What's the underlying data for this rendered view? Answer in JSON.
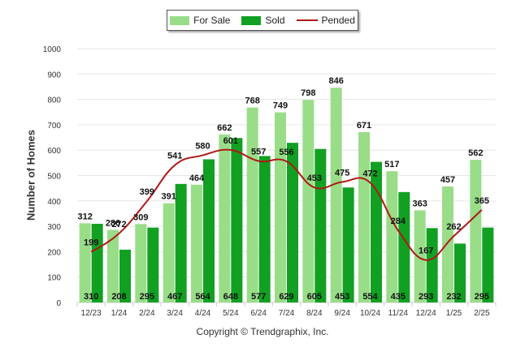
{
  "chart_data": {
    "type": "bar",
    "categories": [
      "12/23",
      "1/24",
      "2/24",
      "3/24",
      "4/24",
      "5/24",
      "6/24",
      "7/24",
      "8/24",
      "9/24",
      "10/24",
      "11/24",
      "12/24",
      "1/25",
      "2/25"
    ],
    "series": [
      {
        "name": "For Sale",
        "kind": "bar",
        "color": "#99dd88",
        "values": [
          312,
          286,
          309,
          391,
          464,
          662,
          768,
          749,
          798,
          846,
          671,
          517,
          363,
          457,
          562
        ]
      },
      {
        "name": "Sold",
        "kind": "bar",
        "color": "#11a022",
        "values": [
          310,
          208,
          295,
          467,
          564,
          648,
          577,
          629,
          605,
          453,
          554,
          435,
          293,
          232,
          295
        ]
      },
      {
        "name": "Pended",
        "kind": "line",
        "color": "#b01818",
        "values": [
          199,
          272,
          399,
          541,
          580,
          601,
          557,
          556,
          453,
          475,
          472,
          284,
          167,
          262,
          365
        ]
      }
    ],
    "ylabel": "Number of Homes",
    "xlabel": "",
    "ylim": [
      0,
      1000
    ],
    "yticks": [
      0,
      100,
      200,
      300,
      400,
      500,
      600,
      700,
      800,
      900,
      1000
    ],
    "grid": true,
    "legend": "top-center"
  },
  "copyright": "Copyright © Trendgraphix, Inc."
}
